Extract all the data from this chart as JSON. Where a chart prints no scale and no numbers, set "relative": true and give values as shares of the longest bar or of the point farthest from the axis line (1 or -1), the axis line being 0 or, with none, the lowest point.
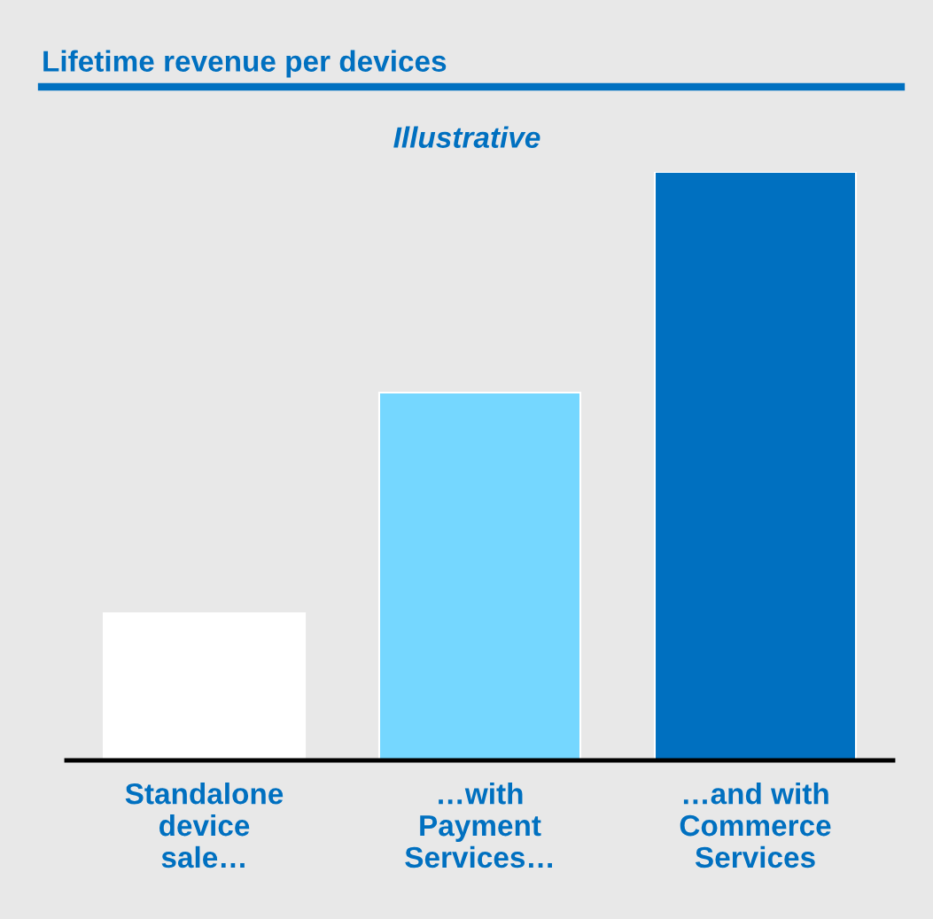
{
  "chart_data": {
    "type": "bar",
    "title": "Lifetime revenue per devices",
    "subtitle": "Illustrative",
    "categories": [
      "Standalone\ndevice\nsale…",
      "…with\nPayment\nServices…",
      "…and with\nCommerce\nServices"
    ],
    "values": [
      0.25,
      0.625,
      1
    ],
    "colors": [
      "#ffffff",
      "#75d7ff",
      "#0070c0"
    ],
    "relative": true,
    "grid": false,
    "legend": false
  }
}
